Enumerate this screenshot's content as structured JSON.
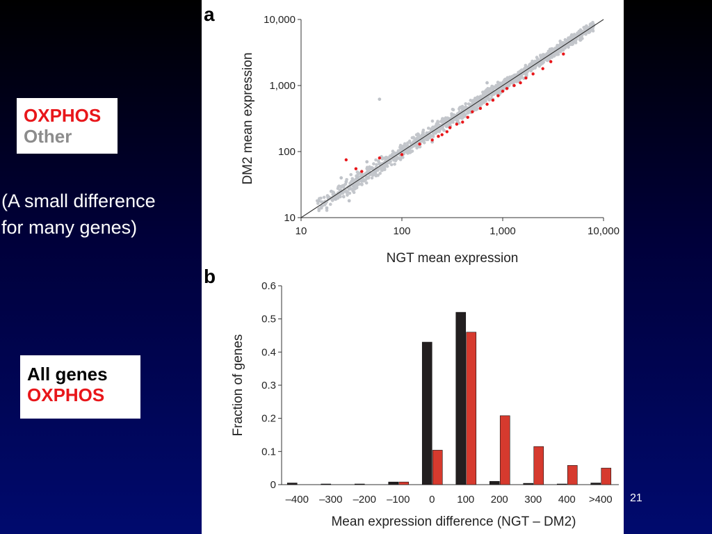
{
  "slide": {
    "legend_top": {
      "line1": "OXPHOS",
      "line2": "Other"
    },
    "note": {
      "line1": "(A small difference",
      "line2": "for many genes)"
    },
    "legend_bottom": {
      "line1": "All genes",
      "line2": "OXPHOS"
    },
    "page_number": "21"
  },
  "chart_data": [
    {
      "panel": "a",
      "type": "scatter",
      "xlabel": "NGT mean expression",
      "ylabel": "DM2 mean expression",
      "x_scale": "log",
      "y_scale": "log",
      "xlim": [
        10,
        10000
      ],
      "ylim": [
        10,
        10000
      ],
      "x_ticks": [
        "10",
        "100",
        "1,000",
        "10,000"
      ],
      "y_ticks": [
        "10",
        "100",
        "1,000",
        "10,000"
      ],
      "identity_line": true,
      "series": [
        {
          "name": "Other",
          "color": "#bfc3c9",
          "x": [
            15,
            18,
            20,
            22,
            25,
            28,
            30,
            33,
            36,
            40,
            45,
            50,
            55,
            60,
            70,
            80,
            90,
            100,
            120,
            140,
            160,
            180,
            200,
            250,
            300,
            350,
            400,
            500,
            600,
            700,
            800,
            1000,
            1200,
            1500,
            1800,
            2200,
            2600,
            3000,
            3500,
            4000,
            5000,
            6000,
            7000,
            8000,
            60,
            25,
            30,
            45,
            200,
            700
          ],
          "y": [
            18,
            14,
            25,
            19,
            24,
            35,
            27,
            30,
            40,
            36,
            48,
            55,
            50,
            65,
            68,
            85,
            95,
            110,
            115,
            150,
            155,
            190,
            210,
            240,
            310,
            330,
            420,
            480,
            640,
            680,
            820,
            980,
            1250,
            1450,
            1900,
            2100,
            2700,
            2900,
            3600,
            4100,
            4800,
            6200,
            6800,
            8300,
            620,
            40,
            18,
            70,
            140,
            1100
          ]
        },
        {
          "name": "OXPHOS",
          "color": "#e8161a",
          "x": [
            28,
            35,
            40,
            60,
            100,
            150,
            200,
            230,
            250,
            280,
            300,
            350,
            400,
            450,
            500,
            600,
            700,
            800,
            900,
            1000,
            1100,
            1300,
            1500,
            1700,
            2000,
            2500,
            3000,
            4000
          ],
          "y": [
            75,
            55,
            50,
            80,
            90,
            130,
            150,
            170,
            180,
            200,
            230,
            260,
            280,
            330,
            400,
            450,
            520,
            600,
            700,
            820,
            900,
            1000,
            1100,
            1300,
            1500,
            1800,
            2300,
            3000
          ]
        }
      ]
    },
    {
      "panel": "b",
      "type": "bar",
      "xlabel": "Mean expression difference (NGT – DM2)",
      "ylabel": "Fraction of genes",
      "ylim": [
        0,
        0.6
      ],
      "y_ticks": [
        "0",
        "0.1",
        "0.2",
        "0.3",
        "0.4",
        "0.5",
        "0.6"
      ],
      "categories": [
        "–400",
        "–300",
        "–200",
        "–100",
        "0",
        "100",
        "200",
        "300",
        "400",
        ">400"
      ],
      "series": [
        {
          "name": "All genes",
          "color": "#231f20",
          "values": [
            0.005,
            0.002,
            0.002,
            0.008,
            0.43,
            0.52,
            0.01,
            0.004,
            0.002,
            0.005
          ]
        },
        {
          "name": "OXPHOS",
          "color": "#d63a2e",
          "values": [
            0,
            0,
            0,
            0.008,
            0.104,
            0.46,
            0.208,
            0.115,
            0.058,
            0.05
          ]
        }
      ]
    }
  ],
  "panel_labels": {
    "a": "a",
    "b": "b"
  }
}
